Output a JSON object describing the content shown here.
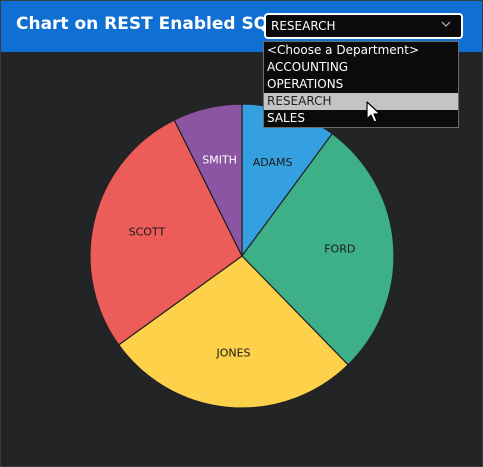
{
  "header": {
    "title": "Chart on REST Enabled SQL",
    "department_select": {
      "value": "RESEARCH"
    }
  },
  "dropdown": {
    "options": [
      "<Choose a Department>",
      "ACCOUNTING",
      "OPERATIONS",
      "RESEARCH",
      "SALES"
    ],
    "highlighted_index": 3
  },
  "icons": {
    "select": "chevron-down-icon",
    "pointer": "mouse-cursor-icon"
  },
  "chart_data": {
    "type": "pie",
    "categories": [
      "ADAMS",
      "FORD",
      "JONES",
      "SCOTT",
      "SMITH"
    ],
    "values": [
      1100,
      3000,
      2975,
      3000,
      800
    ],
    "colors": [
      "#35a0e0",
      "#3db087",
      "#fdd14a",
      "#ec5d59",
      "#8b55a3"
    ],
    "label_colors": [
      "#1a1a1a",
      "#1a1a1a",
      "#1a1a1a",
      "#1a1a1a",
      "#ffffff"
    ],
    "start": "12 o'clock",
    "direction": "clockwise"
  }
}
